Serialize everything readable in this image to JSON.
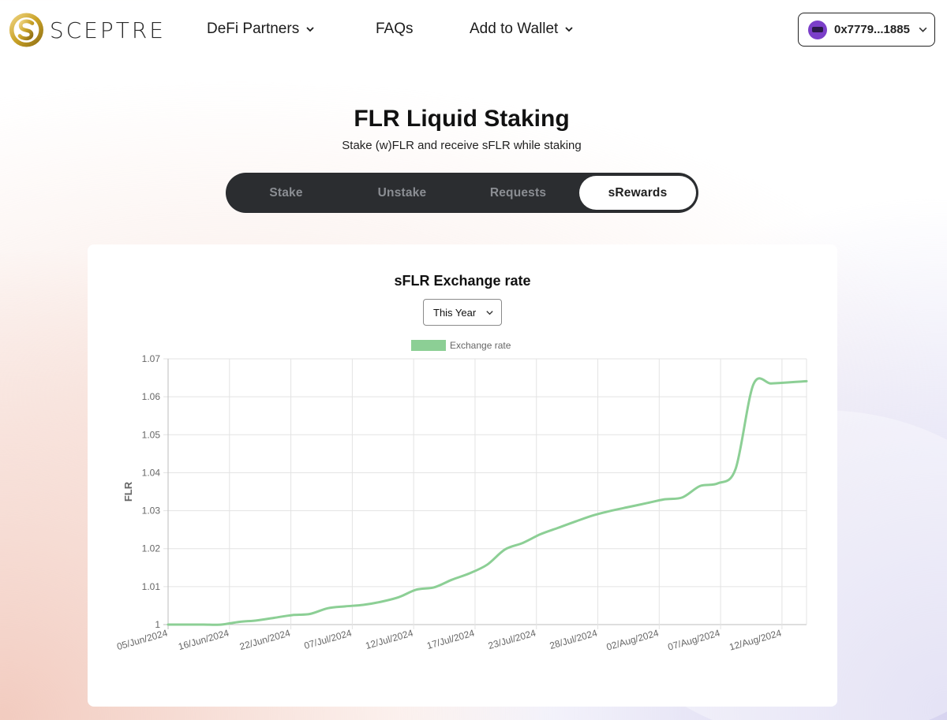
{
  "brand": {
    "name": "SCEPTRE"
  },
  "nav": {
    "defi_partners": "DeFi Partners",
    "faqs": "FAQs",
    "add_to_wallet": "Add to Wallet"
  },
  "wallet": {
    "address": "0x7779...1885"
  },
  "page": {
    "title": "FLR Liquid Staking",
    "subtitle": "Stake (w)FLR and receive sFLR while staking"
  },
  "tabs": [
    {
      "label": "Stake",
      "active": false
    },
    {
      "label": "Unstake",
      "active": false
    },
    {
      "label": "Requests",
      "active": false
    },
    {
      "label": "sRewards",
      "active": true
    }
  ],
  "range": {
    "selected": "This Year"
  },
  "colors": {
    "line": "#8ccf95",
    "tabs_bg": "#2b2d30",
    "logo_gold": "#c9a227"
  },
  "chart_data": {
    "type": "line",
    "title": "sFLR Exchange rate",
    "xlabel": "",
    "ylabel": "FLR",
    "legend": "top-center",
    "grid": true,
    "ylim": [
      1,
      1.07
    ],
    "y_ticks": [
      "1",
      "1.01",
      "1.02",
      "1.03",
      "1.04",
      "1.05",
      "1.06",
      "1.07"
    ],
    "x_ticks": [
      "05/Jun/2024",
      "16/Jun/2024",
      "22/Jun/2024",
      "07/Jul/2024",
      "12/Jul/2024",
      "17/Jul/2024",
      "23/Jul/2024",
      "28/Jul/2024",
      "02/Aug/2024",
      "07/Aug/2024",
      "12/Aug/2024"
    ],
    "series": [
      {
        "name": "Exchange rate",
        "values": [
          1.0,
          1.0,
          1.0,
          1.0,
          1.0007,
          1.0011,
          1.0018,
          1.0025,
          1.0028,
          1.0043,
          1.0048,
          1.0052,
          1.006,
          1.0072,
          1.0092,
          1.0098,
          1.0118,
          1.0135,
          1.0158,
          1.0198,
          1.0215,
          1.0238,
          1.0255,
          1.0272,
          1.0288,
          1.03,
          1.031,
          1.032,
          1.033,
          1.0335,
          1.0365,
          1.0372,
          1.041,
          1.0632,
          1.0635,
          1.0638,
          1.0641
        ]
      }
    ]
  }
}
